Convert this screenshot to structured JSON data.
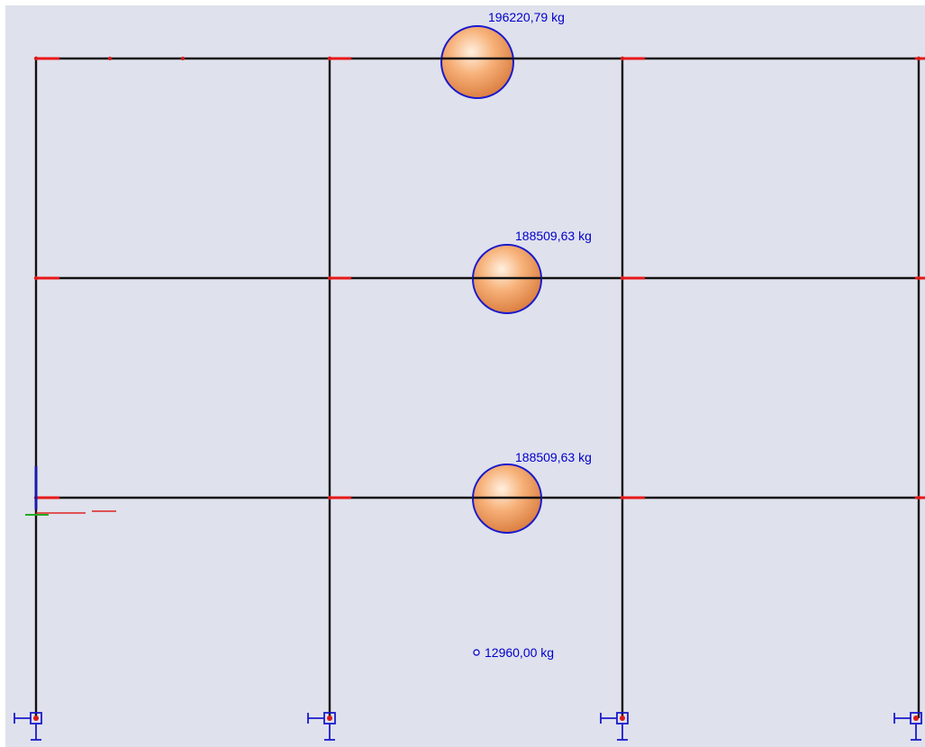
{
  "colors": {
    "canvas": "#dfe1ec",
    "member": "#111111",
    "rigid_end": "#e81818",
    "node": "#d81a1a",
    "mass_fill": "#f4a468",
    "mass_outline": "#1a1acc",
    "label": "#0000cc",
    "support": "#1a1acc",
    "axis_x": "#dd2222",
    "axis_y": "#22aa22",
    "axis_z": "#1a1aaa"
  },
  "icons": {
    "support": "fixed-support-icon",
    "mass": "lumped-mass-icon",
    "axes": "coordinate-axes-icon"
  },
  "masses": [
    {
      "label": "196220,79 kg",
      "value_kg": 196220.79
    },
    {
      "label": "188509,63 kg",
      "value_kg": 188509.63
    },
    {
      "label": "188509,63 kg",
      "value_kg": 188509.63
    },
    {
      "label": "12960,00 kg",
      "value_kg": 12960.0
    }
  ]
}
